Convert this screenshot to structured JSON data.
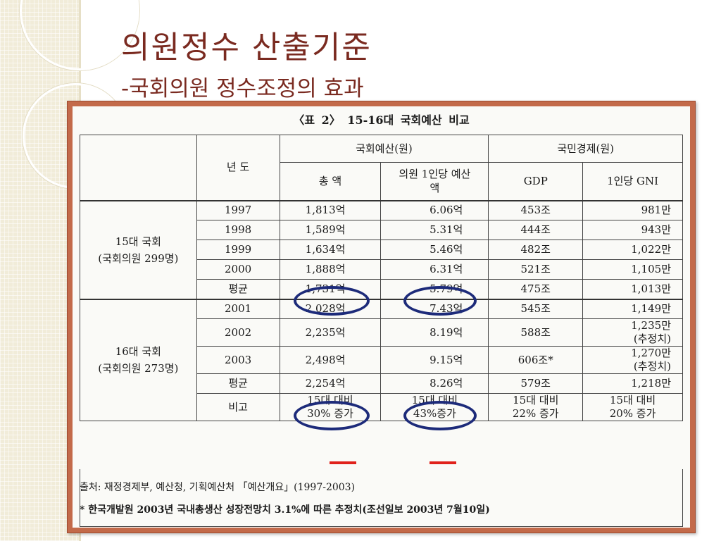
{
  "slide": {
    "title": "의원정수 산출기준",
    "subtitle": "-국회의원 정수조정의 효과"
  },
  "table": {
    "caption": "〈표 2〉  15-16대 국회예산 비교",
    "headers": {
      "year": "년 도",
      "assembly_budget": "국회예산(원)",
      "national_economy": "국민경제(원)",
      "total": "총 액",
      "per_member": "의원 1인당 예산액",
      "gdp": "GDP",
      "gni": "1인당 GNI"
    },
    "groups": [
      {
        "label": "15대 국회\n(국회의원 299명)",
        "rows": [
          {
            "year": "1997",
            "total": "1,813억",
            "per_member": "6.06억",
            "gdp": "453조",
            "gni": "981만"
          },
          {
            "year": "1998",
            "total": "1,589억",
            "per_member": "5.31억",
            "gdp": "444조",
            "gni": "943만"
          },
          {
            "year": "1999",
            "total": "1,634억",
            "per_member": "5.46억",
            "gdp": "482조",
            "gni": "1,022만"
          },
          {
            "year": "2000",
            "total": "1,888억",
            "per_member": "6.31억",
            "gdp": "521조",
            "gni": "1,105만"
          },
          {
            "year": "평균",
            "total": "1,731억",
            "per_member": "5.79억",
            "gdp": "475조",
            "gni": "1,013만"
          }
        ]
      },
      {
        "label": "16대 국회\n(국회의원 273명)",
        "rows": [
          {
            "year": "2001",
            "total": "2,028억",
            "per_member": "7.43억",
            "gdp": "545조",
            "gni": "1,149만"
          },
          {
            "year": "2002",
            "total": "2,235억",
            "per_member": "8.19억",
            "gdp": "588조",
            "gni": "1,235만\n(추정치)"
          },
          {
            "year": "2003",
            "total": "2,498억",
            "per_member": "9.15억",
            "gdp": "606조*",
            "gni": "1,270만\n(추정치)"
          },
          {
            "year": "평균",
            "total": "2,254억",
            "per_member": "8.26억",
            "gdp": "579조",
            "gni": "1,218만"
          },
          {
            "year": "비고",
            "total": "15대 대비\n30% 증가",
            "per_member": "15대 대비\n43%증가",
            "gdp": "15대 대비\n22% 증가",
            "gni": "15대 대비\n20% 증가"
          }
        ]
      }
    ],
    "source_note": "출처: 재정경제부, 예산청, 기획예산처 「예산개요」(1997-2003)",
    "footnote": "* 한국개발원 2003년 국내총생산 성장전망치 3.1%에 따른 추정치(조선일보 2003년 7월10일)"
  },
  "colors": {
    "title": "#7a2a20",
    "frame": "#c36a4a",
    "circle": "#1d2b7a",
    "underline": "#e0211b"
  }
}
